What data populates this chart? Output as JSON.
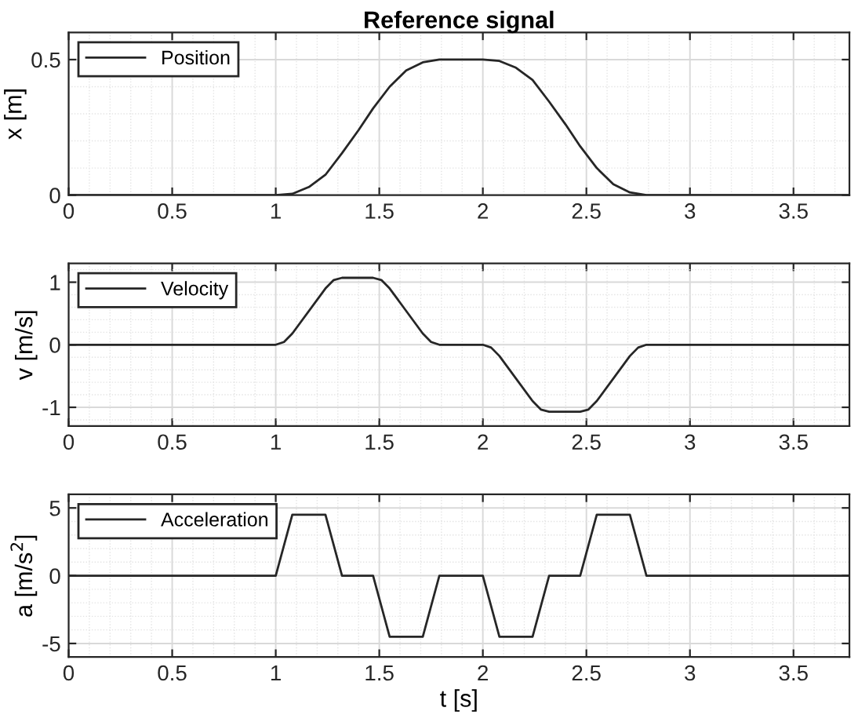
{
  "chart_data": [
    {
      "type": "line",
      "title": "Reference signal",
      "ylabel": "x [m]",
      "xlim": [
        0,
        3.77
      ],
      "xticks": [
        0,
        0.5,
        1,
        1.5,
        2,
        2.5,
        3,
        3.5
      ],
      "ylim": [
        0,
        0.6
      ],
      "yticks": [
        0,
        0.5
      ],
      "grid": true,
      "legend": "top left",
      "marker": "none",
      "line_style": "solid",
      "series": [
        {
          "name": "Position",
          "color": "#262626",
          "x": [
            0,
            1.0,
            1.08,
            1.16,
            1.24,
            1.32,
            1.4,
            1.47,
            1.55,
            1.63,
            1.71,
            1.79,
            2.0,
            2.08,
            2.16,
            2.24,
            2.32,
            2.4,
            2.47,
            2.55,
            2.63,
            2.71,
            2.79,
            3.77
          ],
          "values": [
            0,
            0,
            0.005,
            0.03,
            0.075,
            0.155,
            0.24,
            0.32,
            0.4,
            0.46,
            0.49,
            0.5,
            0.5,
            0.495,
            0.47,
            0.425,
            0.345,
            0.26,
            0.18,
            0.1,
            0.04,
            0.01,
            0,
            0
          ]
        }
      ]
    },
    {
      "type": "line",
      "ylabel": "v [m/s]",
      "xlim": [
        0,
        3.77
      ],
      "xticks": [
        0,
        0.5,
        1,
        1.5,
        2,
        2.5,
        3,
        3.5
      ],
      "ylim": [
        -1.3,
        1.3
      ],
      "yticks": [
        {
          "value": -1,
          "label": "-1"
        },
        0,
        1
      ],
      "grid": true,
      "legend": "top left",
      "marker": "none",
      "line_style": "solid",
      "series": [
        {
          "name": "Velocity",
          "color": "#262626",
          "x": [
            0,
            1.0,
            1.04,
            1.08,
            1.24,
            1.28,
            1.32,
            1.47,
            1.51,
            1.55,
            1.71,
            1.75,
            1.79,
            2.0,
            2.04,
            2.08,
            2.24,
            2.28,
            2.32,
            2.47,
            2.51,
            2.55,
            2.71,
            2.75,
            2.79,
            3.77
          ],
          "values": [
            0,
            0,
            0.045,
            0.18,
            0.9,
            1.035,
            1.07,
            1.07,
            1.035,
            0.9,
            0.18,
            0.045,
            0,
            0,
            -0.045,
            -0.18,
            -0.9,
            -1.035,
            -1.07,
            -1.07,
            -1.035,
            -0.9,
            -0.18,
            -0.045,
            0,
            0
          ]
        }
      ]
    },
    {
      "type": "line",
      "xlabel": "t [s]",
      "ylabel": "a [m/s$^{2}$]",
      "xlim": [
        0,
        3.77
      ],
      "xticks": [
        0,
        0.5,
        1,
        1.5,
        2,
        2.5,
        3,
        3.5
      ],
      "ylim": [
        -6,
        6
      ],
      "yticks": [
        {
          "value": -5,
          "label": "-5"
        },
        0,
        5
      ],
      "grid": true,
      "legend": "top left",
      "marker": "none",
      "line_style": "solid",
      "series": [
        {
          "name": "Acceleration",
          "color": "#262626",
          "x": [
            0,
            1.0,
            1.08,
            1.24,
            1.32,
            1.47,
            1.55,
            1.71,
            1.79,
            2.0,
            2.08,
            2.24,
            2.32,
            2.47,
            2.55,
            2.71,
            2.79,
            3.77
          ],
          "values": [
            0,
            0,
            4.5,
            4.5,
            0,
            0,
            -4.5,
            -4.5,
            0,
            0,
            -4.5,
            -4.5,
            0,
            0,
            4.5,
            4.5,
            0,
            0
          ]
        }
      ]
    }
  ]
}
